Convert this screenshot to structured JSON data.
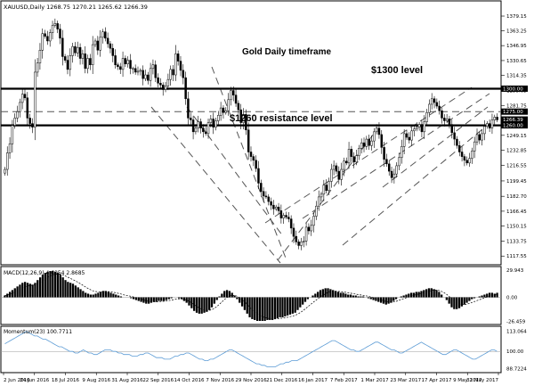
{
  "window": {
    "instrument_header": "XAUUSD,Daily  1268.75 1270.21 1265.62 1266.39"
  },
  "annotations": {
    "title": "Gold Daily timeframe",
    "level_1300": "$1300 level",
    "level_1260": "$1260 resistance level"
  },
  "colors": {
    "background": "#ffffff",
    "frame": "#000000",
    "candle": "#000000",
    "level_line": "#000000",
    "dashed_line": "#555555",
    "grid": "#e8e8e8",
    "histogram": "#000000",
    "signal": "#000000",
    "momentum_line": "#5b9bd5",
    "price_tag_bg": "#000000",
    "price_tag_text": "#ffffff"
  },
  "price_axis": {
    "ticks": [
      "1379.15",
      "1363.25",
      "1346.95",
      "1330.65",
      "1314.35",
      "1298.05",
      "1281.75",
      "1265.45",
      "1249.15",
      "1232.85",
      "1216.55",
      "1199.45",
      "1182.70",
      "1166.45",
      "1150.15",
      "1133.75",
      "1117.55"
    ],
    "tags": [
      {
        "label": "1300.00",
        "value": 1300
      },
      {
        "label": "1275.00",
        "value": 1275
      },
      {
        "label": "1266.39",
        "value": 1266.39
      },
      {
        "label": "1260.00",
        "value": 1260
      }
    ]
  },
  "macd_panel": {
    "label": "MACD(12,26,9) 4.6054 2.8685",
    "ticks": [
      "29.943",
      "0.00",
      "-26.459"
    ]
  },
  "momentum_panel": {
    "label": "Momentum(23) 100.7711",
    "ticks": [
      "113.064",
      "100.00",
      "88.7224"
    ]
  },
  "date_axis": [
    "2 Jun 2016",
    "24 Jun 2016",
    "18 Jul 2016",
    "9 Aug 2016",
    "31 Aug 2016",
    "22 Sep 2016",
    "14 Oct 2016",
    "7 Nov 2016",
    "29 Nov 2016",
    "21 Dec 2016",
    "16 Jan 2017",
    "7 Feb 2017",
    "1 Mar 2017",
    "23 Mar 2017",
    "17 Apr 2017",
    "9 May 2017",
    "31 May 2017"
  ],
  "chart_data": {
    "type": "candlestick",
    "title": "Gold Daily timeframe",
    "ylim": [
      1110,
      1385
    ],
    "x_dates": [
      "2 Jun 2016",
      "24 Jun 2016",
      "18 Jul 2016",
      "9 Aug 2016",
      "31 Aug 2016",
      "22 Sep 2016",
      "14 Oct 2016",
      "7 Nov 2016",
      "29 Nov 2016",
      "21 Dec 2016",
      "16 Jan 2017",
      "7 Feb 2017",
      "1 Mar 2017",
      "23 Mar 2017",
      "17 Apr 2017",
      "9 May 2017",
      "31 May 2017"
    ],
    "horizontal_levels": [
      1300,
      1275,
      1260
    ],
    "closes": [
      1212,
      1230,
      1240,
      1260,
      1268,
      1275,
      1285,
      1294,
      1290,
      1268,
      1262,
      1258,
      1318,
      1328,
      1342,
      1360,
      1357,
      1352,
      1361,
      1369,
      1371,
      1365,
      1355,
      1335,
      1331,
      1321,
      1336,
      1346,
      1339,
      1345,
      1333,
      1338,
      1322,
      1333,
      1326,
      1348,
      1352,
      1342,
      1356,
      1362,
      1355,
      1349,
      1344,
      1336,
      1326,
      1324,
      1321,
      1333,
      1327,
      1331,
      1322,
      1322,
      1318,
      1319,
      1320,
      1311,
      1315,
      1309,
      1322,
      1326,
      1312,
      1306,
      1304,
      1299,
      1303,
      1310,
      1321,
      1315,
      1338,
      1330,
      1320,
      1312,
      1289,
      1268,
      1266,
      1253,
      1257,
      1264,
      1257,
      1253,
      1251,
      1263,
      1267,
      1258,
      1265,
      1271,
      1279,
      1274,
      1276,
      1288,
      1298,
      1293,
      1284,
      1277,
      1263,
      1272,
      1255,
      1231,
      1226,
      1222,
      1213,
      1197,
      1188,
      1183,
      1182,
      1177,
      1173,
      1169,
      1171,
      1167,
      1159,
      1162,
      1160,
      1158,
      1148,
      1139,
      1133,
      1129,
      1133,
      1134,
      1149,
      1145,
      1151,
      1161,
      1172,
      1182,
      1185,
      1195,
      1189,
      1199,
      1212,
      1216,
      1210,
      1201,
      1212,
      1221,
      1219,
      1234,
      1226,
      1220,
      1227,
      1235,
      1241,
      1237,
      1245,
      1238,
      1243,
      1253,
      1257,
      1250,
      1236,
      1223,
      1218,
      1210,
      1203,
      1207,
      1216,
      1225,
      1237,
      1251,
      1247,
      1244,
      1254,
      1256,
      1258,
      1261,
      1253,
      1264,
      1274,
      1283,
      1289,
      1285,
      1281,
      1276,
      1268,
      1265,
      1267,
      1261,
      1252,
      1245,
      1238,
      1231,
      1226,
      1222,
      1219,
      1224,
      1232,
      1242,
      1250,
      1244,
      1251,
      1259,
      1262,
      1257,
      1266,
      1269,
      1266
    ],
    "macd_histogram": [
      2,
      4,
      6,
      8,
      10,
      12,
      14,
      16,
      17,
      16,
      15,
      14,
      16,
      19,
      22,
      25,
      27,
      28,
      29,
      29,
      28,
      27,
      25,
      22,
      19,
      17,
      16,
      15,
      13,
      11,
      9,
      7,
      5,
      4,
      3,
      3,
      4,
      5,
      6,
      7,
      7,
      6,
      5,
      4,
      3,
      2,
      1,
      0,
      0,
      0,
      -1,
      -2,
      -3,
      -4,
      -5,
      -6,
      -7,
      -7,
      -6,
      -5,
      -5,
      -4,
      -4,
      -4,
      -3,
      -2,
      -1,
      0,
      0,
      -1,
      -2,
      -4,
      -6,
      -9,
      -12,
      -15,
      -17,
      -18,
      -18,
      -17,
      -16,
      -14,
      -11,
      -7,
      -3,
      1,
      4,
      7,
      8,
      7,
      5,
      2,
      -2,
      -6,
      -10,
      -14,
      -18,
      -22,
      -24,
      -25,
      -26,
      -26,
      -26,
      -26,
      -25,
      -25,
      -25,
      -24,
      -23,
      -22,
      -22,
      -21,
      -20,
      -19,
      -18,
      -17,
      -14,
      -11,
      -8,
      -5,
      -2,
      0,
      2,
      4,
      6,
      8,
      9,
      10,
      10,
      9,
      8,
      7,
      6,
      5,
      5,
      4,
      3,
      3,
      2,
      2,
      1,
      1,
      1,
      0,
      -1,
      -2,
      -3,
      -4,
      -5,
      -6,
      -7,
      -8,
      -7,
      -6,
      -4,
      -2,
      0,
      1,
      2,
      3,
      4,
      5,
      5,
      6,
      6,
      7,
      8,
      9,
      10,
      10,
      9,
      8,
      6,
      3,
      0,
      -3,
      -7,
      -11,
      -13,
      -13,
      -12,
      -10,
      -8,
      -6,
      -4,
      -2,
      -1,
      0,
      1,
      2,
      3,
      4,
      5,
      5,
      4,
      5
    ],
    "momentum": [
      105,
      106,
      107,
      108,
      109,
      110,
      111,
      112,
      113,
      112,
      111,
      110,
      110,
      109,
      108,
      108,
      107,
      106,
      105,
      104,
      103,
      103,
      102,
      101,
      100,
      100,
      99,
      99,
      100,
      101,
      100,
      99,
      99,
      98,
      98,
      99,
      100,
      101,
      101,
      101,
      100,
      100,
      99,
      99,
      98,
      98,
      98,
      97,
      97,
      97,
      98,
      98,
      99,
      99,
      98,
      97,
      96,
      96,
      96,
      95,
      95,
      95,
      96,
      97,
      97,
      98,
      98,
      99,
      99,
      98,
      97,
      96,
      95,
      95,
      94,
      94,
      95,
      95,
      96,
      97,
      98,
      99,
      100,
      101,
      101,
      100,
      99,
      98,
      97,
      96,
      95,
      94,
      93,
      92,
      92,
      91,
      91,
      90,
      90,
      90,
      90,
      91,
      92,
      92,
      93,
      93,
      94,
      94,
      94,
      95,
      96,
      97,
      98,
      99,
      100,
      101,
      102,
      103,
      104,
      105,
      106,
      107,
      107,
      106,
      105,
      104,
      103,
      102,
      101,
      101,
      100,
      100,
      101,
      102,
      103,
      104,
      105,
      106,
      106,
      105,
      104,
      103,
      102,
      101,
      101,
      100,
      99,
      99,
      100,
      101,
      102,
      103,
      104,
      105,
      106,
      105,
      104,
      103,
      102,
      101,
      100,
      99,
      98,
      98,
      99,
      100,
      101,
      101,
      100,
      99,
      98,
      97,
      96,
      95,
      95,
      96,
      97,
      98,
      99,
      100,
      101,
      101,
      100
    ]
  }
}
